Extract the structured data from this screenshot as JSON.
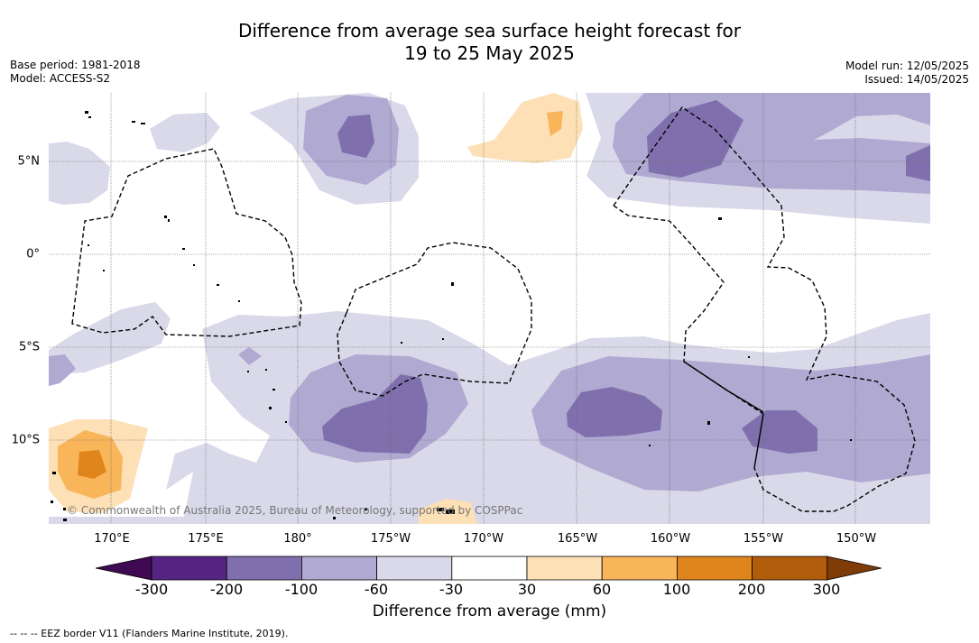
{
  "title_line1": "Difference from average sea surface height forecast for",
  "title_line2": "19 to 25 May 2025",
  "base_period": "Base period: 1981-2018",
  "model": "Model: ACCESS-S2",
  "model_run": "Model run: 12/05/2025",
  "issued": "Issued: 14/05/2025",
  "copyright": "© Commonwealth of Australia 2025, Bureau of Meteorology, supported by COSPPac",
  "footnote": "--  --  -- EEZ border V11 (Flanders Marine Institute, 2019).",
  "colorbar": {
    "label": "Difference from average (mm)",
    "ticks": [
      "-300",
      "-200",
      "-100",
      "-60",
      "-30",
      "30",
      "60",
      "100",
      "200",
      "300"
    ],
    "colors": [
      "#3f0a52",
      "#562583",
      "#7f70ad",
      "#b0a9d1",
      "#d9d9ea",
      "#ffffff",
      "#fde0b6",
      "#f8b55a",
      "#e0851b",
      "#b15c0b",
      "#7f3b08"
    ]
  },
  "map": {
    "lon_labels": [
      "170°E",
      "175°E",
      "180°",
      "175°W",
      "170°W",
      "165°W",
      "160°W",
      "155°W",
      "150°W"
    ],
    "lat_labels": [
      "5°N",
      "0°",
      "5°S",
      "10°S"
    ]
  }
}
